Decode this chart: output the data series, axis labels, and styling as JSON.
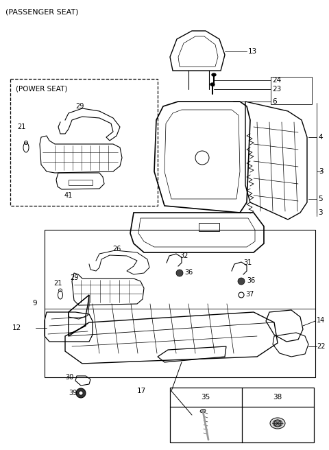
{
  "title": "(PASSENGER SEAT)",
  "bg_color": "#ffffff",
  "lc": "#000000",
  "fig_w": 4.8,
  "fig_h": 6.56,
  "dpi": 100,
  "fs_title": 8,
  "fs_label": 7.5,
  "fs_small": 7
}
